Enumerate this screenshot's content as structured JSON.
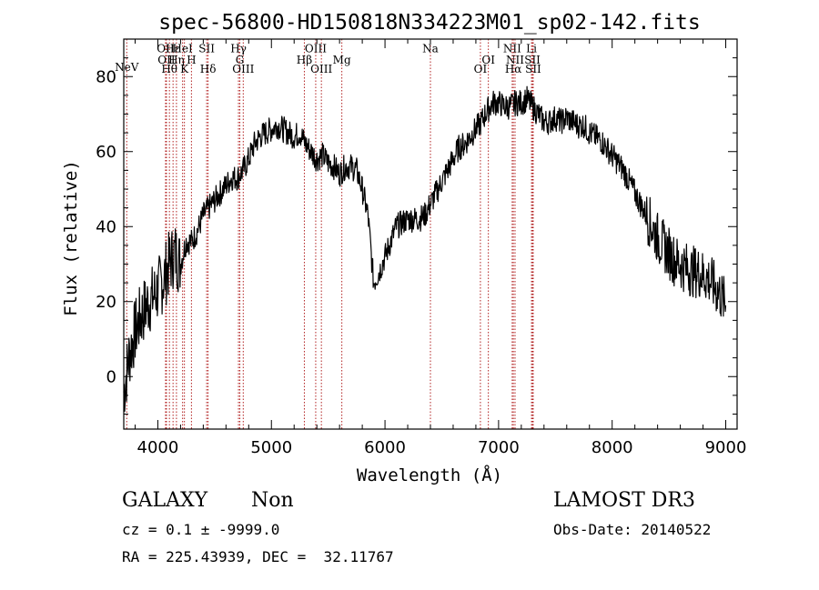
{
  "title": "spec-56800-HD150818N334223M01_sp02-142.fits",
  "info": {
    "class": "GALAXY",
    "subclass": "Non",
    "cz": "cz = 0.1 ± -9999.0",
    "radec": "RA = 225.43939, DEC =  32.11767",
    "survey": "LAMOST DR3",
    "obsdate": "Obs-Date: 20140522"
  },
  "chart_data": {
    "type": "line",
    "title": "spec-56800-HD150818N334223M01_sp02-142.fits",
    "xlabel": "Wavelength (Å)",
    "ylabel": "Flux (relative)",
    "xlim": [
      3700,
      9100
    ],
    "ylim": [
      -14,
      90
    ],
    "xticks": [
      4000,
      5000,
      6000,
      7000,
      8000,
      9000
    ],
    "yticks": [
      0,
      20,
      40,
      60,
      80
    ],
    "grid": false,
    "line_color": "#000000",
    "marker_color": "#b22222",
    "spectrum": {
      "x": [
        3700,
        3750,
        3800,
        3850,
        3900,
        3950,
        4000,
        4050,
        4100,
        4150,
        4200,
        4250,
        4300,
        4350,
        4400,
        4450,
        4500,
        4550,
        4600,
        4650,
        4700,
        4750,
        4800,
        4850,
        4900,
        4950,
        5000,
        5050,
        5100,
        5150,
        5200,
        5250,
        5300,
        5350,
        5400,
        5450,
        5500,
        5550,
        5600,
        5650,
        5700,
        5750,
        5800,
        5850,
        5900,
        5950,
        6000,
        6050,
        6100,
        6150,
        6200,
        6250,
        6300,
        6350,
        6400,
        6450,
        6500,
        6550,
        6600,
        6650,
        6700,
        6750,
        6800,
        6850,
        6900,
        6950,
        7000,
        7050,
        7100,
        7150,
        7200,
        7250,
        7300,
        7350,
        7400,
        7450,
        7500,
        7550,
        7600,
        7650,
        7700,
        7750,
        7800,
        7850,
        7900,
        7950,
        8000,
        8050,
        8100,
        8150,
        8200,
        8250,
        8300,
        8350,
        8400,
        8450,
        8500,
        8550,
        8600,
        8650,
        8700,
        8750,
        8800,
        8850,
        8900,
        8950,
        9000
      ],
      "y": [
        -4,
        6,
        12,
        16,
        19,
        21,
        23,
        26,
        30,
        33,
        30,
        36,
        36,
        39,
        43,
        45,
        47,
        49,
        51,
        53,
        53,
        55,
        58,
        62,
        64,
        65,
        66,
        67,
        66,
        65,
        64,
        65,
        62,
        60,
        58,
        59,
        57,
        56,
        54,
        56,
        56,
        55,
        50,
        43,
        25,
        28,
        32,
        36,
        40,
        41,
        42,
        42,
        42,
        43,
        46,
        49,
        52,
        55,
        58,
        61,
        62,
        64,
        66,
        68,
        71,
        73,
        73,
        72,
        72,
        73,
        73,
        74,
        72,
        70,
        68,
        68,
        69,
        68,
        69,
        68,
        67,
        67,
        65,
        64,
        63,
        61,
        59,
        57,
        55,
        52,
        49,
        46,
        43,
        40,
        37,
        35,
        33,
        31,
        30,
        29,
        28,
        28,
        27,
        26,
        24,
        22,
        19
      ]
    },
    "spectral_lines": [
      {
        "label": "NeV",
        "wavelength": 3726,
        "label_y": 81.5
      },
      {
        "label": "OII",
        "wavelength": 4068,
        "label_y": 86.5
      },
      {
        "label": "OII",
        "wavelength": 4076,
        "label_y": 83.5
      },
      {
        "label": "Hθ",
        "wavelength": 4102,
        "label_y": 81
      },
      {
        "label": "Hε",
        "wavelength": 4134,
        "label_y": 86.5
      },
      {
        "label": "Hη",
        "wavelength": 4164,
        "label_y": 83.5
      },
      {
        "label": "HeI",
        "wavelength": 4218,
        "label_y": 86.5
      },
      {
        "label": "K",
        "wavelength": 4234,
        "label_y": 81
      },
      {
        "label": "H",
        "wavelength": 4296,
        "label_y": 83.5
      },
      {
        "label": "SII",
        "wavelength": 4430,
        "label_y": 86.5
      },
      {
        "label": "Hδ",
        "wavelength": 4442,
        "label_y": 81
      },
      {
        "label": "Hγ",
        "wavelength": 4710,
        "label_y": 86.5
      },
      {
        "label": "G",
        "wavelength": 4722,
        "label_y": 83.5
      },
      {
        "label": "OIII",
        "wavelength": 4752,
        "label_y": 81
      },
      {
        "label": "OIII",
        "wavelength": 5390,
        "label_y": 86.5
      },
      {
        "label": "Hβ",
        "wavelength": 5290,
        "label_y": 83.5
      },
      {
        "label": "OIII",
        "wavelength": 5440,
        "label_y": 81
      },
      {
        "label": "Mg",
        "wavelength": 5620,
        "label_y": 83.5
      },
      {
        "label": "Na",
        "wavelength": 6400,
        "label_y": 86.5
      },
      {
        "label": "OI",
        "wavelength": 6910,
        "label_y": 83.5
      },
      {
        "label": "OI",
        "wavelength": 6840,
        "label_y": 81
      },
      {
        "label": "NII",
        "wavelength": 7120,
        "label_y": 86.5
      },
      {
        "label": "NII",
        "wavelength": 7145,
        "label_y": 83.5
      },
      {
        "label": "Hα",
        "wavelength": 7130,
        "label_y": 81
      },
      {
        "label": "Li",
        "wavelength": 7290,
        "label_y": 86.5
      },
      {
        "label": "SII",
        "wavelength": 7298,
        "label_y": 83.5
      },
      {
        "label": "SII",
        "wavelength": 7305,
        "label_y": 81
      }
    ]
  }
}
